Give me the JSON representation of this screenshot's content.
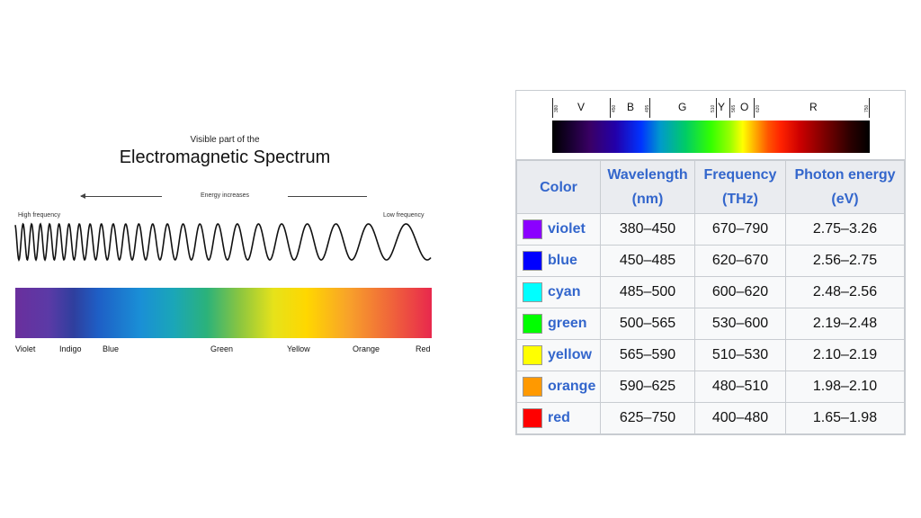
{
  "diagram": {
    "subtitle": "Visible part of the",
    "title": "Electromagnetic Spectrum",
    "energy_label": "Energy increases",
    "high_frequency": "High frequency",
    "low_frequency": "Low frequency",
    "color_labels": [
      "Violet",
      "Indigo",
      "Blue",
      "Green",
      "Yellow",
      "Orange",
      "Red"
    ]
  },
  "spectrum_header": {
    "ticks": [
      "380",
      "450",
      "495",
      "510",
      "565",
      "620",
      "750"
    ],
    "bands": [
      "V",
      "B",
      "G",
      "Y",
      "O",
      "R"
    ]
  },
  "table": {
    "headers": {
      "color": "Color",
      "wavelength": "Wavelength",
      "wavelength_unit": "(nm)",
      "frequency": "Frequency",
      "frequency_unit": "(THz)",
      "energy": "Photon energy",
      "energy_unit": "(eV)"
    },
    "rows": [
      {
        "name": "violet",
        "swatch": "#8b00ff",
        "wavelength": "380–450",
        "frequency": "670–790",
        "energy": "2.75–3.26"
      },
      {
        "name": "blue",
        "swatch": "#0000ff",
        "wavelength": "450–485",
        "frequency": "620–670",
        "energy": "2.56–2.75"
      },
      {
        "name": "cyan",
        "swatch": "#00ffff",
        "wavelength": "485–500",
        "frequency": "600–620",
        "energy": "2.48–2.56"
      },
      {
        "name": "green",
        "swatch": "#00ff00",
        "wavelength": "500–565",
        "frequency": "530–600",
        "energy": "2.19–2.48"
      },
      {
        "name": "yellow",
        "swatch": "#ffff00",
        "wavelength": "565–590",
        "frequency": "510–530",
        "energy": "2.10–2.19"
      },
      {
        "name": "orange",
        "swatch": "#ff9900",
        "wavelength": "590–625",
        "frequency": "480–510",
        "energy": "1.98–2.10"
      },
      {
        "name": "red",
        "swatch": "#ff0000",
        "wavelength": "625–750",
        "frequency": "400–480",
        "energy": "1.65–1.98"
      }
    ]
  }
}
